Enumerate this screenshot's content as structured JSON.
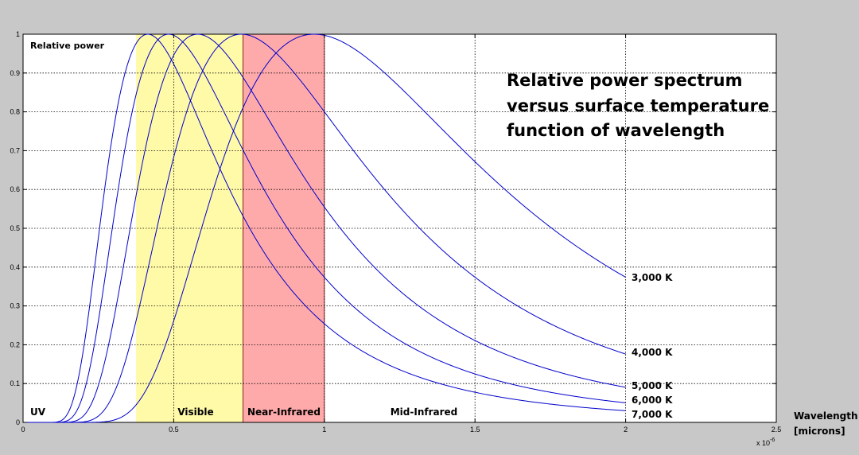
{
  "chart_data": {
    "type": "line",
    "title_lines": [
      "Relative power spectrum",
      "versus surface temperature",
      "function of wavelength"
    ],
    "ylabel": "Relative power",
    "xlabel_lines": [
      "Wavelength",
      "[microns]"
    ],
    "x_scale_label": "x 10",
    "x_scale_exp": "-6",
    "xlim": [
      0,
      2.5
    ],
    "ylim": [
      0,
      1
    ],
    "grid": true,
    "x_ticks": [
      0,
      0.5,
      1,
      1.5,
      2,
      2.5
    ],
    "x_tick_labels": [
      "0",
      "0.5",
      "1",
      "1.5",
      "2",
      "2.5"
    ],
    "y_ticks": [
      0,
      0.1,
      0.2,
      0.3,
      0.4,
      0.5,
      0.6,
      0.7,
      0.8,
      0.9,
      1
    ],
    "y_tick_labels": [
      "0",
      "0.1",
      "0.2",
      "0.3",
      "0.4",
      "0.5",
      "0.6",
      "0.7",
      "0.8",
      "0.9",
      "1"
    ],
    "line_color": "#0000cc",
    "regions": [
      {
        "label": "UV",
        "x_start": 0,
        "x_end": 0.375,
        "color": "#ffffff"
      },
      {
        "label": "Visible",
        "x_start": 0.375,
        "x_end": 0.73,
        "color": "#fffaa8"
      },
      {
        "label": "Near-Infrared",
        "x_start": 0.73,
        "x_end": 1.0,
        "color": "#ffaaaa"
      },
      {
        "label": "Mid-Infrared",
        "x_start": 1.0,
        "x_end": 2.5,
        "color": "#ffffff"
      }
    ],
    "series": [
      {
        "name": "3,000 K",
        "temperature": 3000,
        "x_range": [
          0,
          2
        ],
        "end_value": 0.37
      },
      {
        "name": "4,000 K",
        "temperature": 4000,
        "x_range": [
          0,
          2
        ],
        "end_value": 0.18
      },
      {
        "name": "5,000 K",
        "temperature": 5000,
        "x_range": [
          0,
          2
        ],
        "end_value": 0.09
      },
      {
        "name": "6,000 K",
        "temperature": 6000,
        "x_range": [
          0,
          2
        ],
        "end_value": 0.05
      },
      {
        "name": "7,000 K",
        "temperature": 7000,
        "x_range": [
          0,
          2
        ],
        "end_value": 0.03
      }
    ]
  }
}
